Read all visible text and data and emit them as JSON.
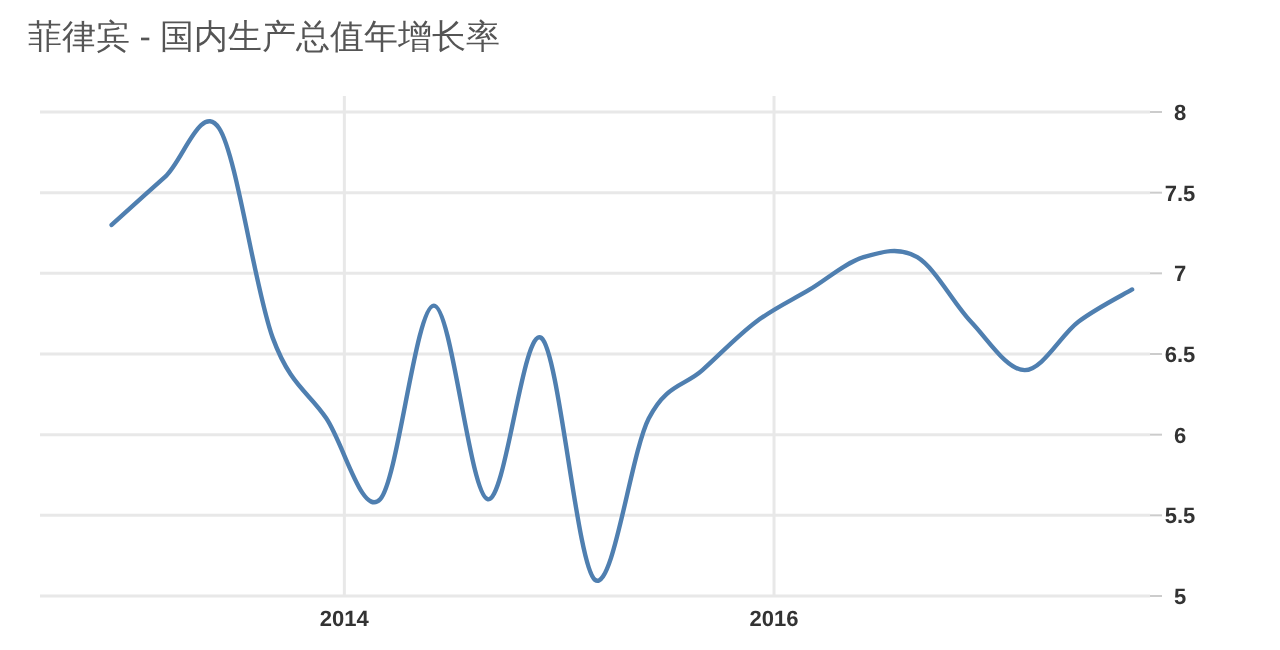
{
  "chart_data": {
    "type": "line",
    "title": "菲律宾 - 国内生产总值年增长率",
    "x": [
      "2012-12",
      "2013-03",
      "2013-06",
      "2013-09",
      "2013-12",
      "2014-03",
      "2014-06",
      "2014-09",
      "2014-12",
      "2015-03",
      "2015-06",
      "2015-09",
      "2015-12",
      "2016-03",
      "2016-06",
      "2016-09",
      "2016-12",
      "2017-03",
      "2017-06",
      "2017-09"
    ],
    "series": [
      {
        "color": "#4f7fb0",
        "values": [
          7.3,
          7.6,
          7.9,
          6.6,
          6.1,
          5.6,
          6.8,
          5.6,
          6.6,
          5.1,
          6.1,
          6.4,
          6.7,
          6.9,
          7.1,
          7.1,
          6.7,
          6.4,
          6.7,
          6.9
        ]
      }
    ],
    "xlim": [
      "2012-08",
      "2017-10"
    ],
    "xticks": [
      "2014",
      "2016"
    ],
    "ylim": [
      5,
      8
    ],
    "yticks": [
      5,
      5.5,
      6,
      6.5,
      7,
      7.5,
      8
    ],
    "grid": true,
    "marker": "none",
    "line_style": "solid"
  }
}
